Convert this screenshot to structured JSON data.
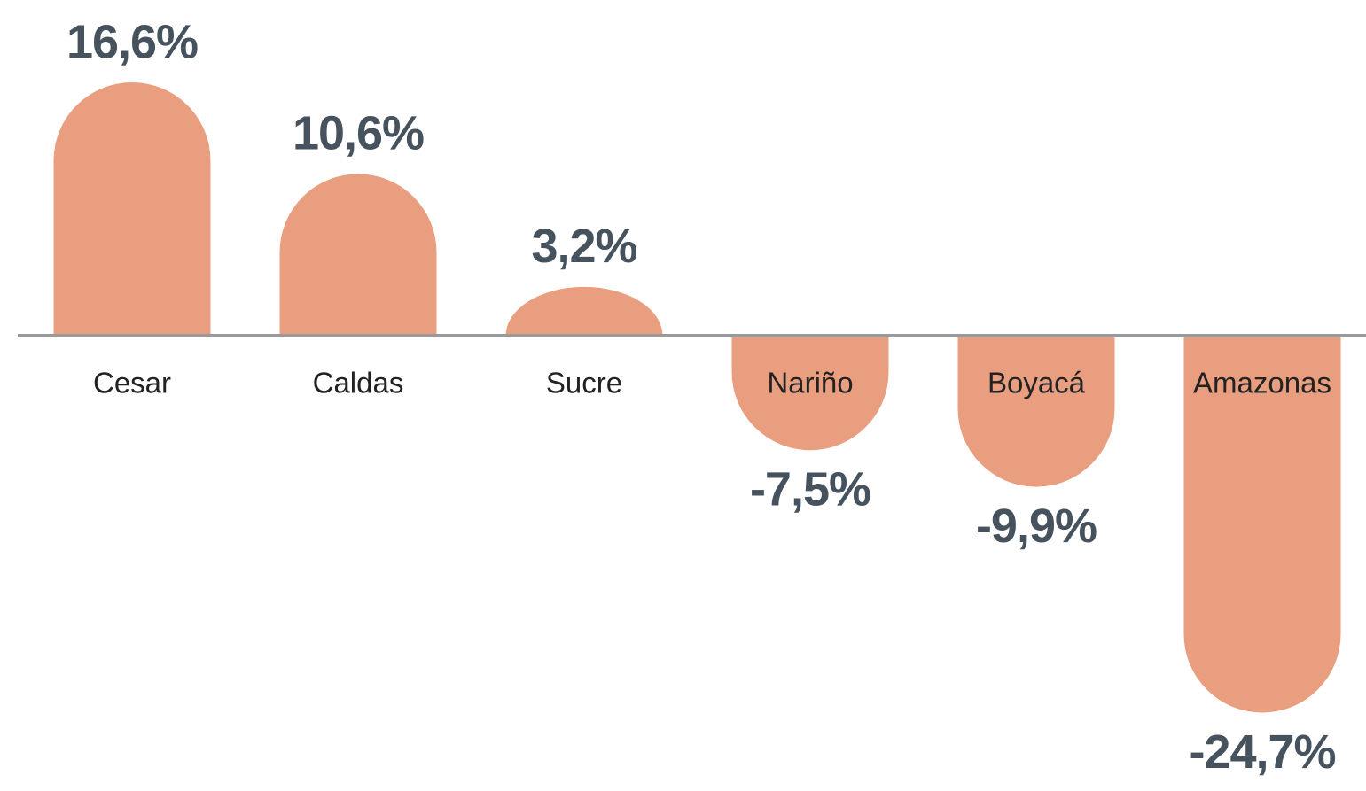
{
  "chart_data": {
    "type": "bar",
    "categories": [
      "Cesar",
      "Caldas",
      "Sucre",
      "Nariño",
      "Boyacá",
      "Amazonas"
    ],
    "values": [
      16.6,
      10.6,
      3.2,
      -7.5,
      -9.9,
      -24.7
    ],
    "value_labels": [
      "16,6%",
      "10,6%",
      "3,2%",
      "-7,5%",
      "-9,9%",
      "-24,7%"
    ],
    "color": "#e89e7f"
  }
}
